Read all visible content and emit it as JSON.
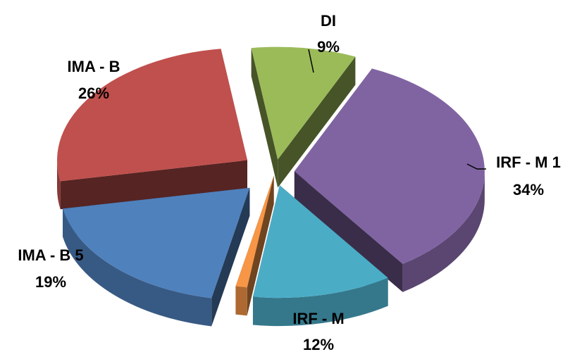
{
  "chart_data": {
    "type": "pie",
    "title": "",
    "slices": [
      {
        "name": "DI",
        "pct_label": "9%",
        "value": 9,
        "color": "#9BBB59"
      },
      {
        "name": "IRF - M 1",
        "pct_label": "34%",
        "value": 34,
        "color": "#8064A2"
      },
      {
        "name": "IRF - M",
        "pct_label": "12%",
        "value": 12,
        "color": "#4BACC6"
      },
      {
        "name": "",
        "pct_label": "",
        "value": 0,
        "color": "#F79646"
      },
      {
        "name": "IMA - B 5",
        "pct_label": "19%",
        "value": 19,
        "color": "#4F81BD"
      },
      {
        "name": "IMA - B",
        "pct_label": "26%",
        "value": 26,
        "color": "#C0504D"
      }
    ]
  }
}
